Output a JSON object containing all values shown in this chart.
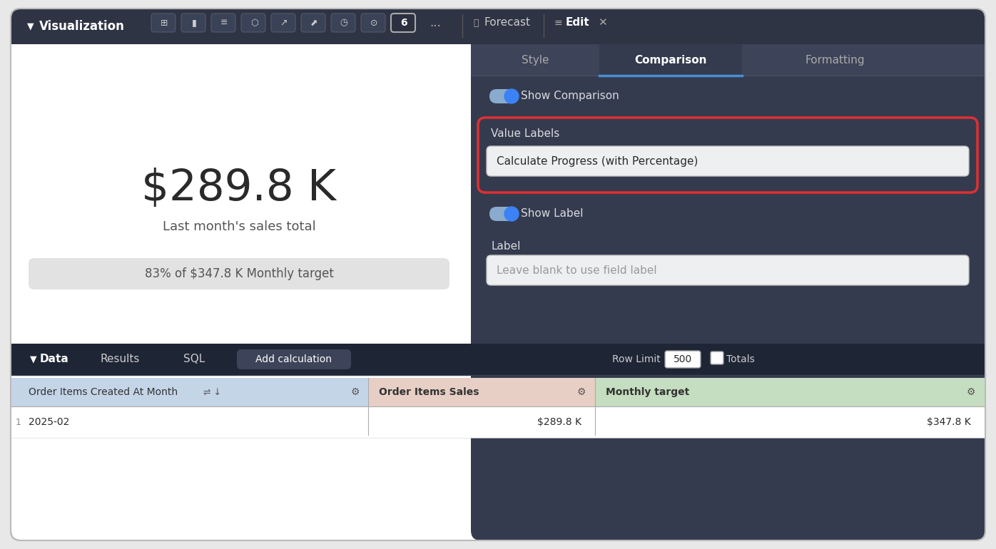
{
  "bg_color": "#e8e8e8",
  "card_bg": "#ffffff",
  "card_border": "#bbbbbb",
  "top_bar_bg": "#2e3444",
  "top_bar_text": "Visualization",
  "panel_bg": "#353b4e",
  "panel_bg2": "#2e3444",
  "tab_bar_bg": "#3d4459",
  "tab_active_bg": "#353b4e",
  "tab_inactive_text": "#aaaaaa",
  "tab_active_text_color": "#ffffff",
  "white_area_bg": "#ffffff",
  "main_value": "$289.8 K",
  "subtitle": "Last month's sales total",
  "progress_text": "83% of $347.8 K Monthly target",
  "progress_bg": "#e2e2e2",
  "toggle_track": "#8aabce",
  "toggle_knob": "#3b82f6",
  "show_comparison_label": "Show Comparison",
  "value_labels_label": "Value Labels",
  "dropdown_text": "Calculate Progress (with Percentage)",
  "dropdown_bg": "#eeeff1",
  "red_border": "#e03030",
  "show_label_text": "Show Label",
  "label_section_text": "Label",
  "label_placeholder": "Leave blank to use field label",
  "input_bg": "#eeeff1",
  "forecast_text": "Forecast",
  "edit_text": "Edit",
  "data_bar_bg": "#1e2535",
  "data_tab1": "Data",
  "data_tab2": "Results",
  "data_tab3": "SQL",
  "data_tab4": "Add calculation",
  "add_calc_bg": "#3d4459",
  "row_limit_value": "500",
  "totals_label": "Totals",
  "col1_header": "Order Items Created At Month",
  "col2_header": "Order Items Sales",
  "col3_header": "Monthly target",
  "col1_bg": "#c5d5e8",
  "col2_bg": "#e8cfc5",
  "col3_bg": "#c5ddc0",
  "row1_col1": "2025-02",
  "row1_col2": "$289.8 K",
  "row1_col3": "$347.8 K",
  "separator_color": "#cccccc",
  "text_dark": "#2a2a2a",
  "text_medium": "#555555",
  "text_light": "#cccccc",
  "text_white": "#ffffff",
  "text_panel": "#d8dae0"
}
